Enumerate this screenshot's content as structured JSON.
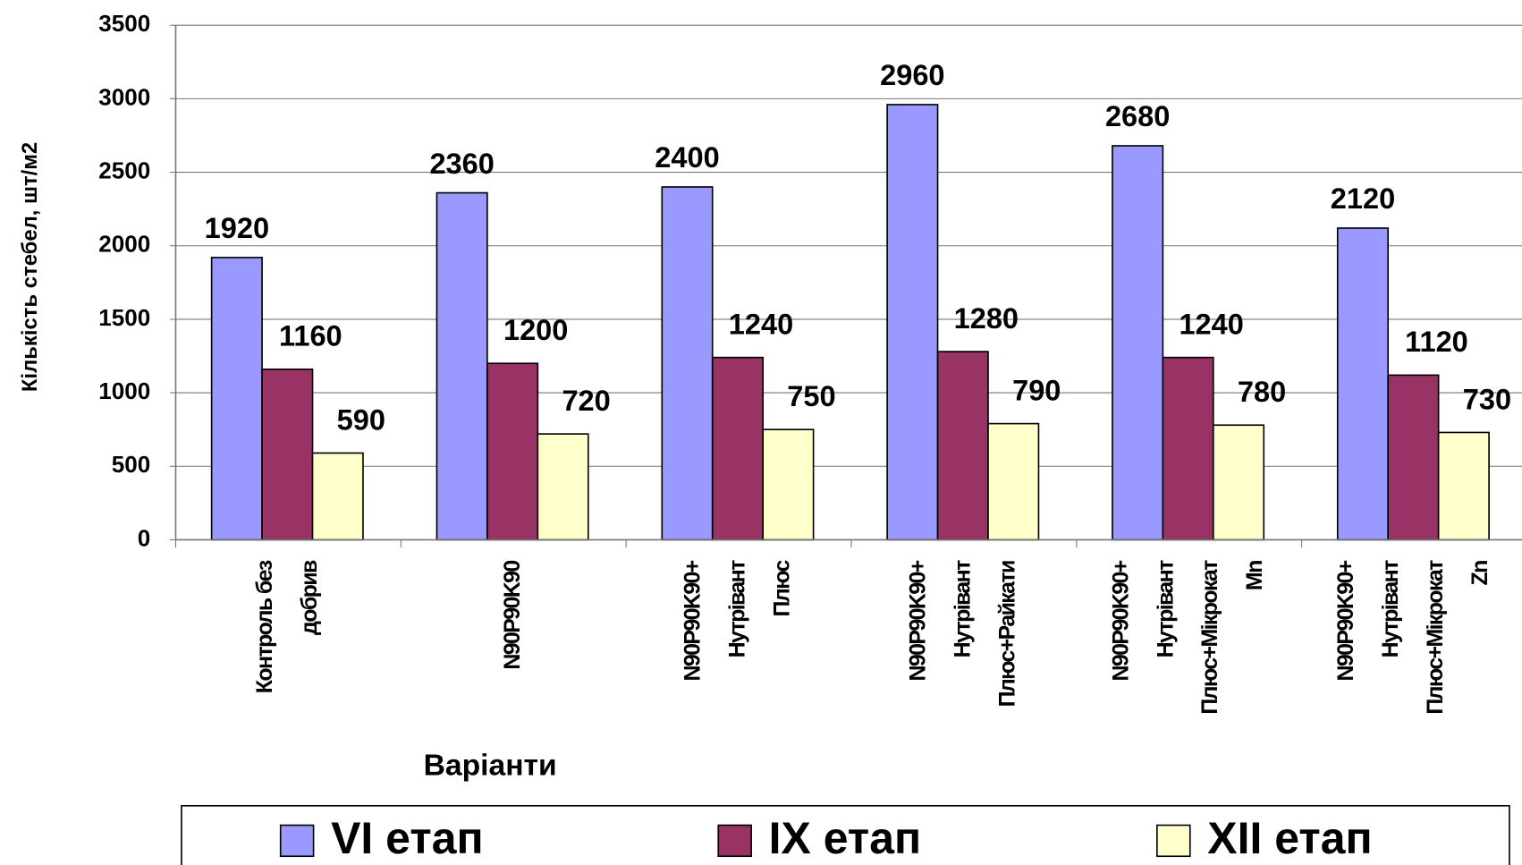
{
  "chart_data": {
    "type": "bar",
    "y_axis_label": "Кількість стебел, шт/м2",
    "x_axis_label": "Варіанти",
    "categories": [
      [
        "Контроль без",
        "добрив"
      ],
      [
        "N90P90K90"
      ],
      [
        "N90P90K90+",
        "Нутрівант",
        "Плюс"
      ],
      [
        "N90P90K90+",
        "Нутрівант",
        "Плюс+Райкати"
      ],
      [
        "N90P90K90+",
        "Нутрівант",
        "Плюс+Мікрокат",
        "Mn"
      ],
      [
        "N90P90K90+",
        "Нутрівант",
        "Плюс+Мікрокат",
        "Zn"
      ]
    ],
    "series": [
      {
        "name": "VI етап",
        "color": "#9999ff",
        "values": [
          1920,
          2360,
          2400,
          2960,
          2680,
          2120
        ]
      },
      {
        "name": "IX етап",
        "color": "#993366",
        "values": [
          1160,
          1200,
          1240,
          1280,
          1240,
          1120
        ]
      },
      {
        "name": "XII етап",
        "color": "#ffffcc",
        "values": [
          590,
          720,
          750,
          790,
          780,
          730
        ]
      }
    ],
    "ylim": [
      0,
      3500
    ],
    "yticks": [
      0,
      500,
      1000,
      1500,
      2000,
      2500,
      3000,
      3500
    ],
    "grid": true,
    "legend": "bottom"
  }
}
